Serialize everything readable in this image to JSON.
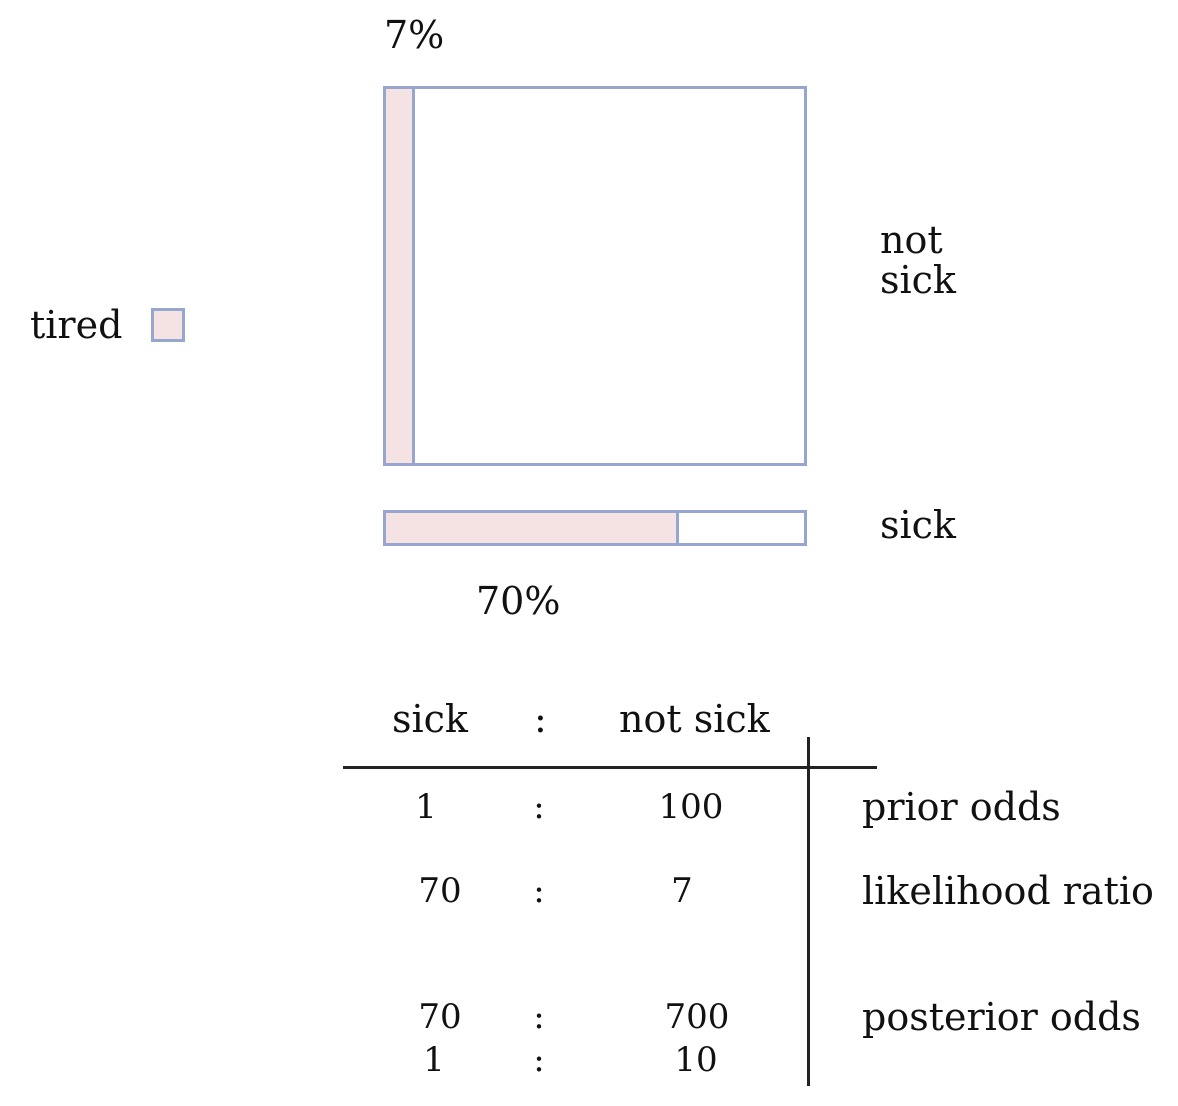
{
  "colors": {
    "tired_fill": "#f5e3e3",
    "box_border": "#97a6cf",
    "line": "#222222"
  },
  "legend": {
    "label": "tired"
  },
  "not_sick": {
    "label_line1": "not",
    "label_line2": "sick",
    "tired_fraction": 0.07,
    "percent_label": "7%"
  },
  "sick": {
    "label": "sick",
    "tired_fraction": 0.7,
    "percent_label": "70%"
  },
  "table": {
    "headers": {
      "left": "sick",
      "sep": ":",
      "right": "not sick"
    },
    "rows": [
      {
        "left": "1",
        "sep": ":",
        "right": "100",
        "label": "prior odds"
      },
      {
        "left": "70",
        "sep": ":",
        "right": "7",
        "label": "likelihood ratio"
      },
      {
        "left": "70",
        "sep": ":",
        "right": "700",
        "label": "posterior odds"
      },
      {
        "left": "1",
        "sep": ":",
        "right": "10",
        "label": ""
      }
    ]
  }
}
